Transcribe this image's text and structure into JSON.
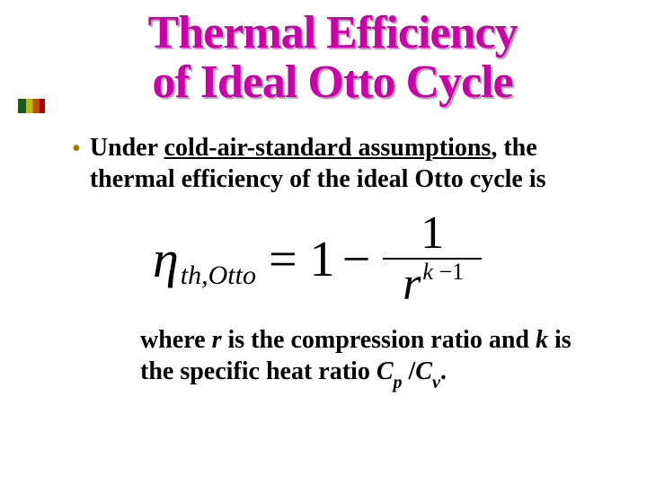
{
  "title_line1": "Thermal Efficiency",
  "title_line2": "of Ideal Otto Cycle",
  "bullet": {
    "pre": "Under ",
    "underlined": "cold-air-standard assumptions",
    "post": ", the thermal efficiency of the ideal Otto cycle is"
  },
  "equation": {
    "eta": "η",
    "sub1": "th",
    "sub_sep": ",",
    "sub2": "Otto",
    "eq": "=",
    "one": "1",
    "minus": "−",
    "frac_num": "1",
    "den_base": "r",
    "exp_k": "k",
    "exp_minus": "−",
    "exp_one": "1"
  },
  "closing": {
    "t1": "where ",
    "r": "r",
    "t2": " is the compression ratio and ",
    "k": "k",
    "t3": " is the specific heat ratio ",
    "cp": "C",
    "cp_sub": "p",
    "slash": " /",
    "cv": "C",
    "cv_sub": "v",
    "period": "."
  },
  "colors": {
    "title": "#cc00aa",
    "title_shadow": "#a8a8a8",
    "bullet_dot": "#b07000",
    "text": "#000000",
    "background": "#ffffff"
  },
  "typography": {
    "title_fontsize": 52,
    "body_fontsize": 28,
    "equation_fontsize": 56,
    "font_family": "Times New Roman"
  }
}
